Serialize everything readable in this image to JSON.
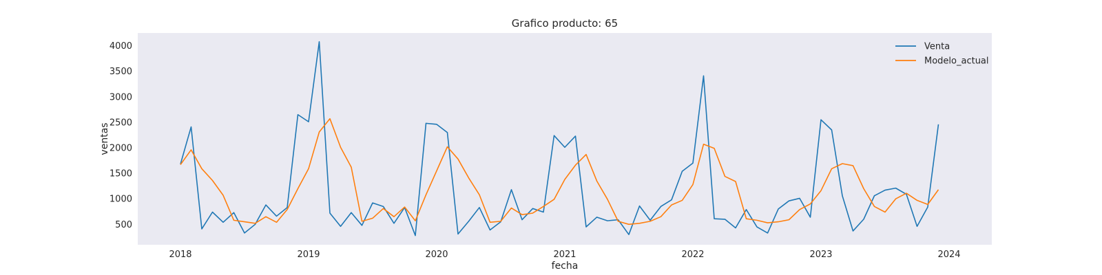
{
  "chart_data": {
    "type": "line",
    "title": "Grafico producto: 65",
    "xlabel": "fecha",
    "ylabel": "ventas",
    "x_start": "2018-01",
    "x_frequency": "monthly",
    "xlim": [
      "2017-09",
      "2024-05"
    ],
    "ylim": [
      100,
      4250
    ],
    "xticks": [
      {
        "value": "2018-01",
        "label": "2018"
      },
      {
        "value": "2019-01",
        "label": "2019"
      },
      {
        "value": "2020-01",
        "label": "2020"
      },
      {
        "value": "2021-01",
        "label": "2021"
      },
      {
        "value": "2022-01",
        "label": "2022"
      },
      {
        "value": "2023-01",
        "label": "2023"
      },
      {
        "value": "2024-01",
        "label": "2024"
      }
    ],
    "yticks": [
      500,
      1000,
      1500,
      2000,
      2500,
      3000,
      3500,
      4000
    ],
    "grid": false,
    "legend_position": "top-right",
    "background": "#eaeaf2",
    "series": [
      {
        "name": "Venta",
        "color": "#1f77b4",
        "values": [
          1680,
          2410,
          410,
          740,
          540,
          730,
          330,
          500,
          880,
          660,
          830,
          2650,
          2510,
          4080,
          720,
          460,
          730,
          480,
          920,
          850,
          520,
          830,
          280,
          2480,
          2460,
          2300,
          310,
          560,
          830,
          390,
          550,
          1180,
          590,
          810,
          740,
          2240,
          2010,
          2230,
          450,
          640,
          570,
          590,
          300,
          860,
          580,
          850,
          980,
          1540,
          1700,
          3410,
          610,
          600,
          430,
          790,
          450,
          330,
          800,
          960,
          1010,
          640,
          2550,
          2350,
          1060,
          370,
          600,
          1060,
          1170,
          1210,
          1090,
          460,
          840,
          2460
        ]
      },
      {
        "name": "Modelo_actual",
        "color": "#ff7f0e",
        "values": [
          1670,
          1960,
          1590,
          1360,
          1070,
          580,
          550,
          520,
          650,
          540,
          790,
          1200,
          1590,
          2310,
          2570,
          2010,
          1620,
          560,
          620,
          810,
          650,
          840,
          570,
          1080,
          1550,
          2020,
          1780,
          1410,
          1080,
          540,
          560,
          820,
          690,
          720,
          850,
          990,
          1380,
          1660,
          1870,
          1350,
          990,
          560,
          500,
          520,
          560,
          650,
          880,
          970,
          1280,
          2070,
          1990,
          1440,
          1340,
          610,
          580,
          530,
          550,
          590,
          790,
          900,
          1160,
          1590,
          1690,
          1650,
          1200,
          850,
          740,
          1000,
          1110,
          970,
          890,
          1180
        ]
      }
    ]
  }
}
